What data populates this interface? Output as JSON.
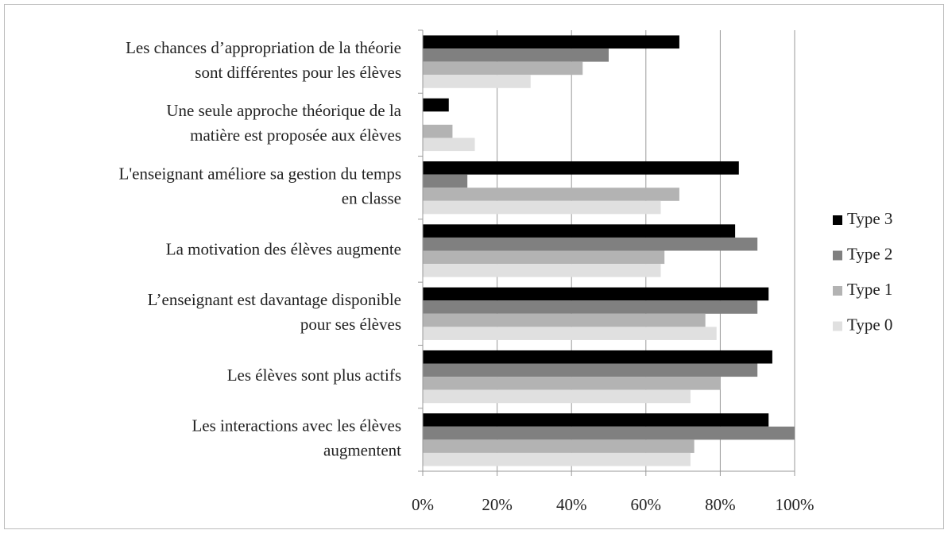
{
  "chart_data": {
    "type": "bar",
    "orientation": "horizontal",
    "categories": [
      [
        "Les chances d’appropriation de la théorie",
        "sont différentes pour les élèves"
      ],
      [
        "Une seule approche théorique de la",
        "matière est proposée aux élèves"
      ],
      [
        "L'enseignant améliore sa gestion du temps",
        "en classe"
      ],
      [
        "La motivation des élèves augmente"
      ],
      [
        "L’enseignant est davantage disponible",
        "pour ses élèves"
      ],
      [
        "Les élèves sont plus actifs"
      ],
      [
        "Les interactions avec les élèves",
        "augmentent"
      ]
    ],
    "series": [
      {
        "name": "Type 3",
        "color": "#000000",
        "values": [
          69,
          7,
          85,
          84,
          93,
          94,
          93
        ]
      },
      {
        "name": "Type 2",
        "color": "#808080",
        "values": [
          50,
          0,
          12,
          90,
          90,
          90,
          100
        ]
      },
      {
        "name": "Type 1",
        "color": "#b3b3b3",
        "values": [
          43,
          8,
          69,
          65,
          76,
          80,
          73
        ]
      },
      {
        "name": "Type 0",
        "color": "#e0e0e0",
        "values": [
          29,
          14,
          64,
          64,
          79,
          72,
          72
        ]
      }
    ],
    "xlim": [
      0,
      100
    ],
    "xticks": [
      {
        "value": 0,
        "label": "0%"
      },
      {
        "value": 20,
        "label": "20%"
      },
      {
        "value": 40,
        "label": "40%"
      },
      {
        "value": 60,
        "label": "60%"
      },
      {
        "value": 80,
        "label": "80%"
      },
      {
        "value": 100,
        "label": "100%"
      }
    ],
    "grid": true,
    "legend": "right"
  }
}
